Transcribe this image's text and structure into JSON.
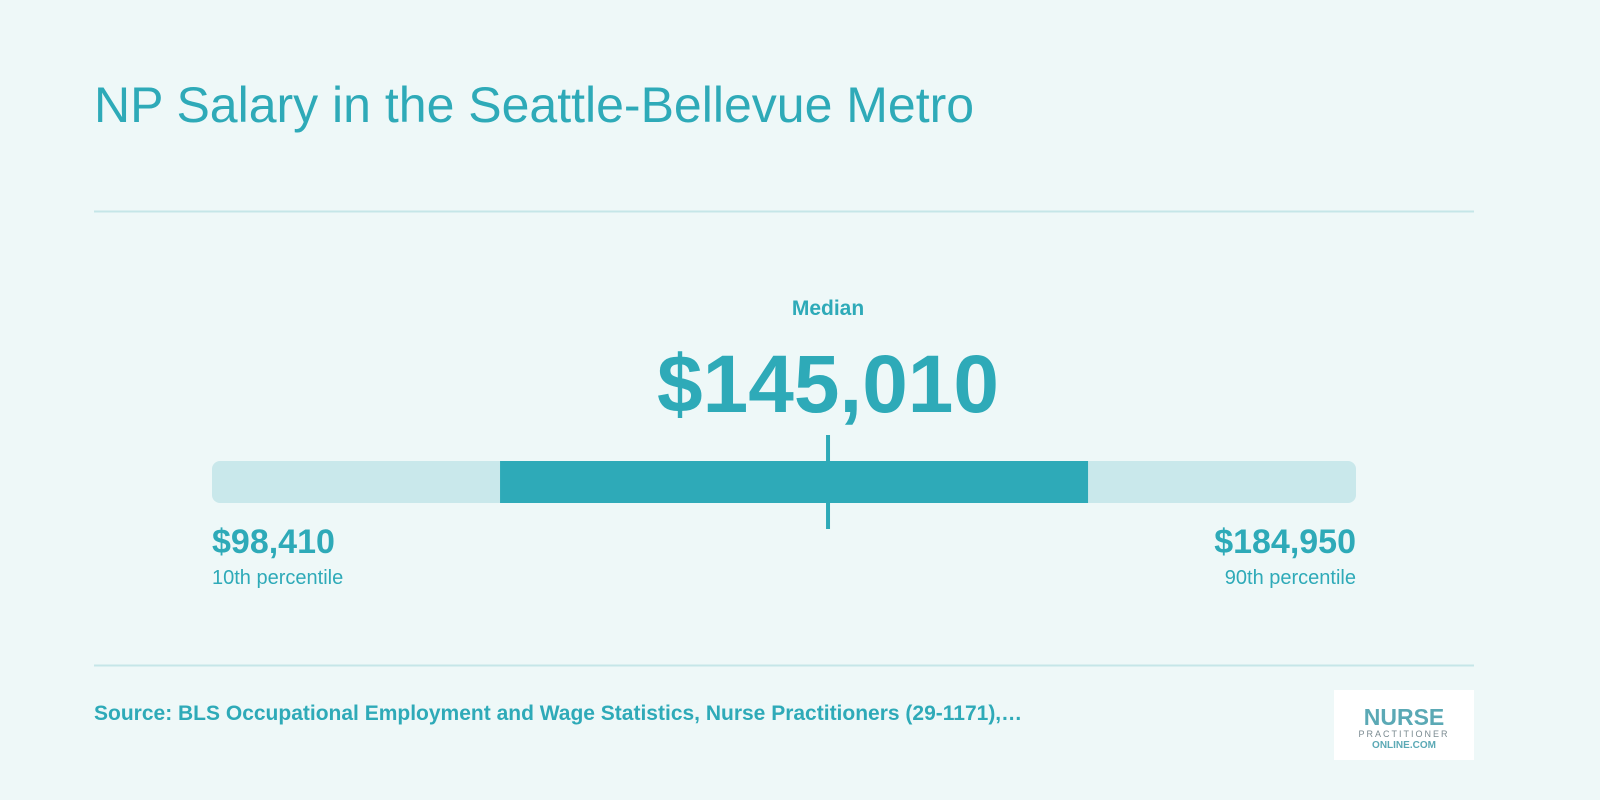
{
  "chart_data": {
    "type": "range",
    "title": "NP Salary in the Seattle-Bellevue Metro",
    "categories": [
      "10th percentile",
      "Median",
      "90th percentile"
    ],
    "values": [
      98410,
      145010,
      184950
    ],
    "value_labels": [
      "$98,410",
      "$145,010",
      "$184,950"
    ],
    "band": [
      120200,
      164680
    ],
    "xlim": [
      98410,
      184950
    ],
    "track_color": "#c9e8eb",
    "color": "#2eaab8"
  },
  "footer": {
    "source": "Source: BLS Occupational Employment and Wage Statistics, Nurse Practitioners (29-1171),…",
    "logo": [
      "NURSE",
      "PRACTITIONER",
      "ONLINE.COM"
    ]
  }
}
